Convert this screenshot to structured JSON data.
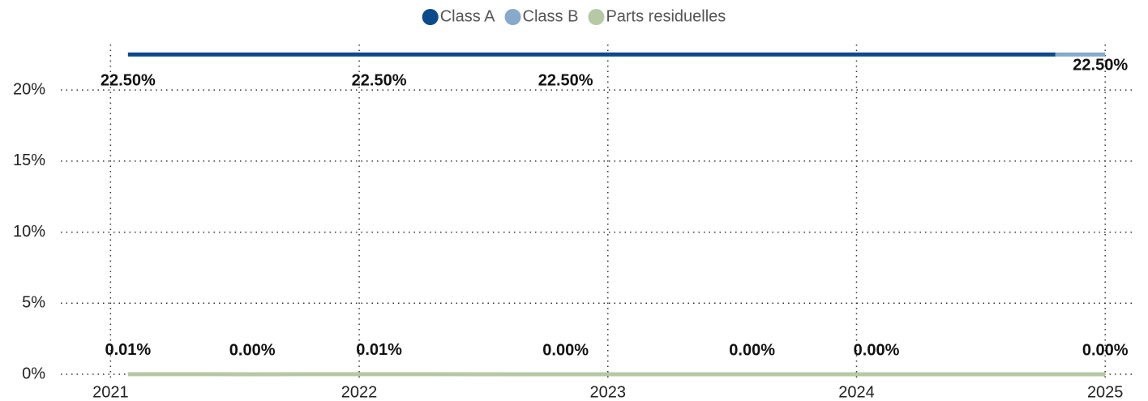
{
  "chart_data": {
    "type": "line",
    "xlim": [
      2020.8,
      2025.12
    ],
    "xticks": [
      2021,
      2022,
      2023,
      2024,
      2025
    ],
    "ylim": [
      0,
      23.2
    ],
    "yticks": [
      {
        "value": 0,
        "label": "0%"
      },
      {
        "value": 5,
        "label": "5%"
      },
      {
        "value": 10,
        "label": "10%"
      },
      {
        "value": 15,
        "label": "15%"
      },
      {
        "value": 20,
        "label": "20%"
      }
    ],
    "grid": true,
    "legend": "top",
    "series": [
      {
        "name": "Class A",
        "color": "#0b4a8b",
        "x": [
          2021.07,
          2022.08,
          2022.83,
          2024.8
        ],
        "values": [
          22.5,
          22.5,
          22.5,
          22.5
        ],
        "value_labels": [
          "22.50%",
          "22.50%",
          "22.50%",
          null
        ]
      },
      {
        "name": "Class B",
        "color": "#86a9cc",
        "x": [
          2024.8,
          2025.0
        ],
        "values": [
          22.5,
          22.5
        ],
        "value_labels": [
          null,
          "22.50%"
        ]
      },
      {
        "name": "Parts residuelles",
        "color": "#b5c9a5",
        "x": [
          2021.07,
          2021.57,
          2022.08,
          2022.83,
          2023.58,
          2024.08,
          2025.0
        ],
        "values": [
          0.01,
          0,
          0.01,
          0,
          0,
          0,
          0
        ],
        "value_labels": [
          "0.01%",
          "0.00%",
          "0.01%",
          "0.00%",
          "0.00%",
          "0.00%",
          "0.00%"
        ]
      }
    ]
  }
}
